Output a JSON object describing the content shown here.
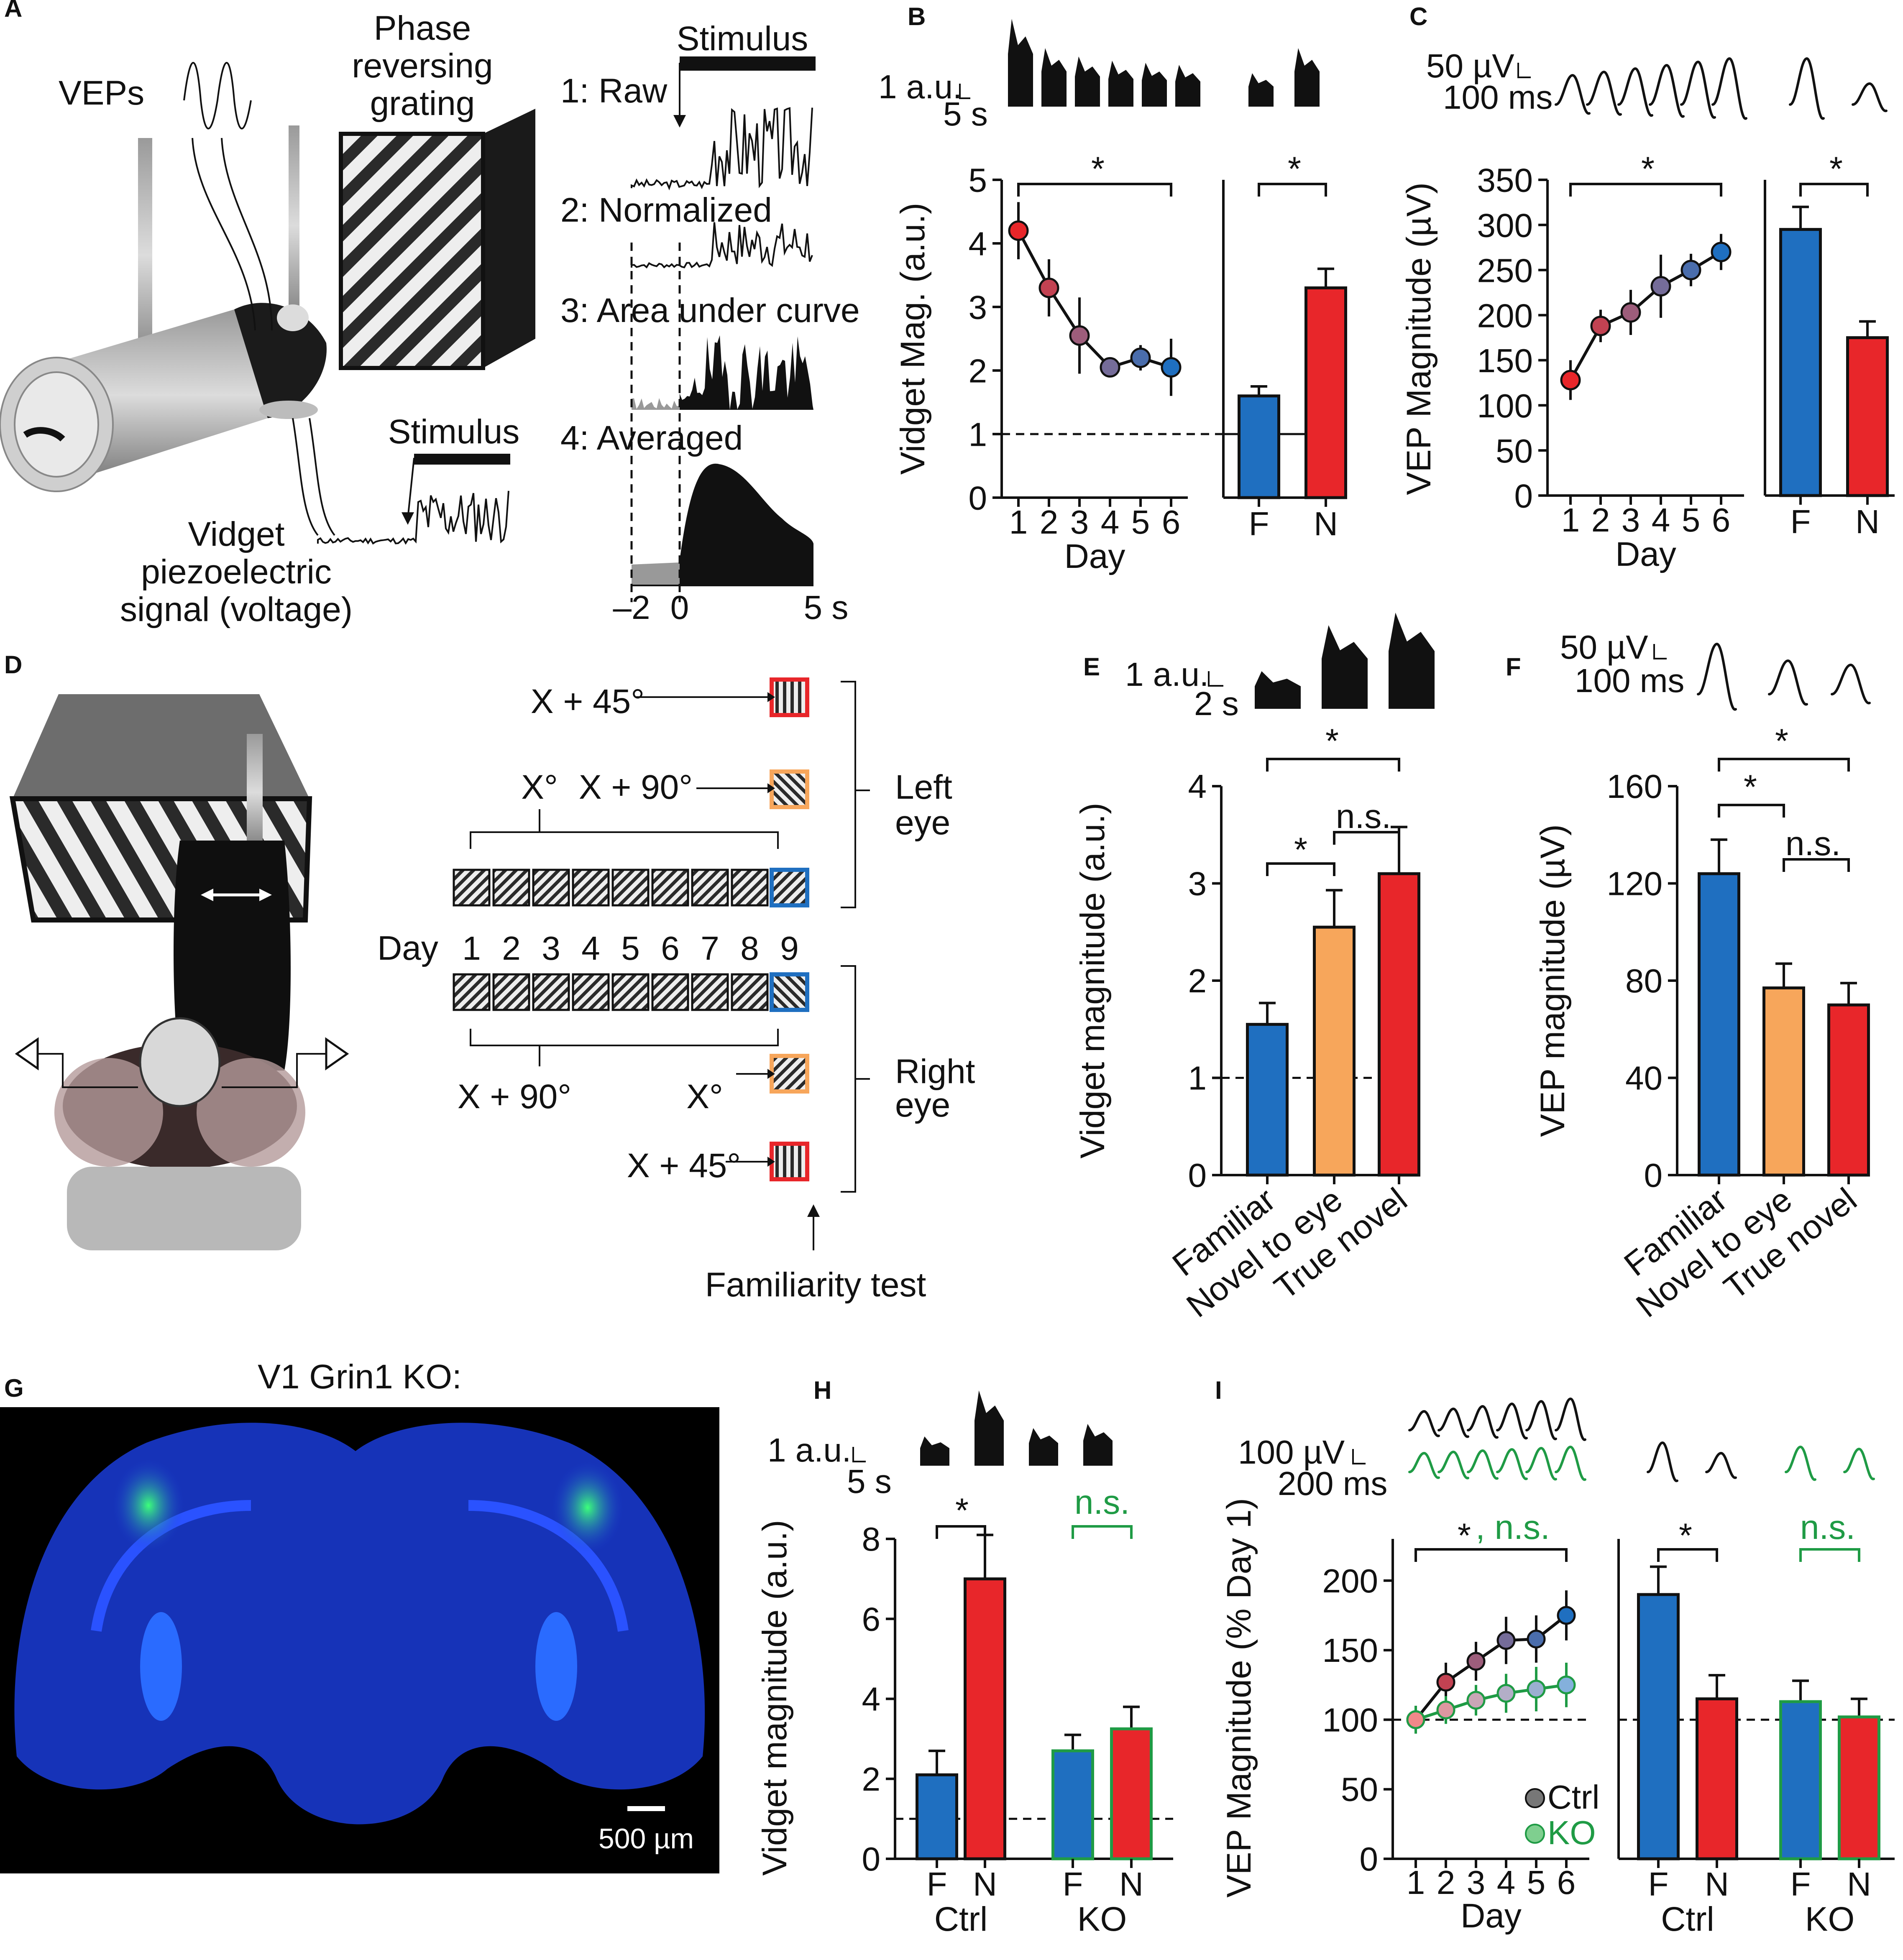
{
  "colors": {
    "blue": "#1f6fc0",
    "red": "#e8262a",
    "orange": "#f7a65b",
    "green": "#1f9b45",
    "maroon": "#9b4a5a",
    "purple": "#8a6b8f",
    "black": "#111111"
  },
  "panels": {
    "A": {
      "letter": "A",
      "veps": "VEPs",
      "grating": [
        "Phase",
        "reversing",
        "grating"
      ],
      "stimulus": "Stimulus",
      "steps": [
        "1: Raw",
        "2: Normalized",
        "3: Area under curve",
        "4: Averaged"
      ],
      "stimulus_lower": "Stimulus",
      "signal": [
        "Vidget",
        "piezoelectric",
        "signal (voltage)"
      ],
      "time_ticks": [
        "–2",
        "0",
        "5 s"
      ]
    },
    "B": {
      "letter": "B",
      "scale_y": "1 a.u.",
      "scale_x": "5 s",
      "sig": "*",
      "sig_right": "*"
    },
    "C": {
      "letter": "C",
      "scale_y": "50 µV",
      "scale_x": "100 ms",
      "sig": "*",
      "sig_right": "*"
    },
    "D": {
      "letter": "D",
      "day_label": "Day",
      "days": [
        "1",
        "2",
        "3",
        "4",
        "5",
        "6",
        "7",
        "8",
        "9"
      ],
      "left_eye": [
        "Left",
        "eye"
      ],
      "right_eye": [
        "Right",
        "eye"
      ],
      "top_labels": {
        "plus45": "X + 45°",
        "plus90": "X + 90°",
        "x": "X°"
      },
      "bottom_labels": {
        "plus90": "X + 90°",
        "x": "X°",
        "plus45": "X + 45°"
      },
      "familiarity": "Familiarity test"
    },
    "E": {
      "letter": "E",
      "scale_y": "1 a.u.",
      "scale_x": "2 s",
      "sig1": "*",
      "sig2": "*",
      "ns": "n.s."
    },
    "F": {
      "letter": "F",
      "scale_y": "50 µV",
      "scale_x": "100 ms",
      "sig1": "*",
      "sig2": "*",
      "ns": "n.s."
    },
    "G": {
      "letter": "G",
      "title": "V1 Grin1 KO:",
      "scale_bar": "500 µm"
    },
    "H": {
      "letter": "H",
      "scale_y": "1 a.u.",
      "scale_x": "5 s",
      "sig": "*",
      "ns": "n.s."
    },
    "I": {
      "letter": "I",
      "scale_y": "100 µV",
      "scale_x": "200 ms",
      "sig_star": "*",
      "sig_ns": ", n.s.",
      "sig_right": "*",
      "ns_right": "n.s.",
      "legend": [
        "Ctrl",
        "KO"
      ]
    }
  },
  "chart_data": [
    {
      "id": "B-left",
      "type": "line",
      "x": [
        1,
        2,
        3,
        4,
        5,
        6
      ],
      "xlabel": "Day",
      "ylabel": "Vidget Mag. (a.u.)",
      "ylim": [
        0,
        5
      ],
      "yticks": [
        0,
        1,
        2,
        3,
        4,
        5
      ],
      "series": [
        {
          "values": [
            4.2,
            3.3,
            2.55,
            2.05,
            2.2,
            2.05
          ],
          "errors": [
            0.45,
            0.45,
            0.6,
            0.15,
            0.2,
            0.45
          ]
        }
      ],
      "reference_line": 1
    },
    {
      "id": "B-right",
      "type": "bar",
      "categories": [
        "F",
        "N"
      ],
      "values": [
        1.6,
        3.3
      ],
      "errors": [
        0.15,
        0.3
      ],
      "ylim": [
        0,
        5
      ],
      "reference_line": 1
    },
    {
      "id": "C-left",
      "type": "line",
      "x": [
        1,
        2,
        3,
        4,
        5,
        6
      ],
      "xlabel": "Day",
      "ylabel": "VEP Magnitude (µV)",
      "ylim": [
        0,
        350
      ],
      "yticks": [
        0,
        50,
        100,
        150,
        200,
        250,
        300,
        350
      ],
      "series": [
        {
          "values": [
            128,
            188,
            203,
            232,
            250,
            270
          ],
          "errors": [
            22,
            18,
            25,
            35,
            18,
            20
          ]
        }
      ]
    },
    {
      "id": "C-right",
      "type": "bar",
      "categories": [
        "F",
        "N"
      ],
      "values": [
        295,
        175
      ],
      "errors": [
        25,
        18
      ],
      "ylim": [
        0,
        350
      ]
    },
    {
      "id": "E",
      "type": "bar",
      "categories": [
        "Familiar",
        "Novel to eye",
        "True novel"
      ],
      "values": [
        1.55,
        2.55,
        3.1
      ],
      "errors": [
        0.22,
        0.38,
        0.48
      ],
      "ylabel": "Vidget magnitude (a.u.)",
      "ylim": [
        0,
        4
      ],
      "yticks": [
        0,
        1,
        2,
        3,
        4
      ],
      "reference_line": 1
    },
    {
      "id": "F",
      "type": "bar",
      "categories": [
        "Familiar",
        "Novel to eye",
        "True novel"
      ],
      "values": [
        124,
        77,
        70
      ],
      "errors": [
        14,
        10,
        9
      ],
      "ylabel": "VEP magnitude (µV)",
      "ylim": [
        0,
        160
      ],
      "yticks": [
        0,
        40,
        80,
        120,
        160
      ]
    },
    {
      "id": "H",
      "type": "bar",
      "categories": [
        "F",
        "N",
        "F",
        "N"
      ],
      "groups": [
        "Ctrl",
        "KO"
      ],
      "values": [
        2.1,
        7.0,
        2.7,
        3.25
      ],
      "errors": [
        0.6,
        1.1,
        0.4,
        0.55
      ],
      "ylabel": "Vidget magnitude (a.u.)",
      "ylim": [
        0,
        8
      ],
      "yticks": [
        0,
        2,
        4,
        6,
        8
      ],
      "reference_line": 1
    },
    {
      "id": "I-left",
      "type": "line",
      "x": [
        1,
        2,
        3,
        4,
        5,
        6
      ],
      "xlabel": "Day",
      "ylabel": "VEP Magnitude (% Day 1)",
      "ylim": [
        0,
        230
      ],
      "yticks": [
        0,
        50,
        100,
        150,
        200
      ],
      "series": [
        {
          "name": "Ctrl",
          "values": [
            100,
            127,
            142,
            157,
            158,
            175
          ],
          "errors": [
            10,
            14,
            14,
            17,
            17,
            18
          ]
        },
        {
          "name": "KO",
          "values": [
            100,
            107,
            114,
            119,
            122,
            125
          ],
          "errors": [
            10,
            10,
            11,
            14,
            16,
            16
          ]
        }
      ],
      "reference_line": 100
    },
    {
      "id": "I-right",
      "type": "bar",
      "categories": [
        "F",
        "N",
        "F",
        "N"
      ],
      "groups": [
        "Ctrl",
        "KO"
      ],
      "values": [
        190,
        115,
        113,
        102
      ],
      "errors": [
        20,
        17,
        15,
        13
      ],
      "ylim": [
        0,
        230
      ],
      "reference_line": 100
    }
  ]
}
